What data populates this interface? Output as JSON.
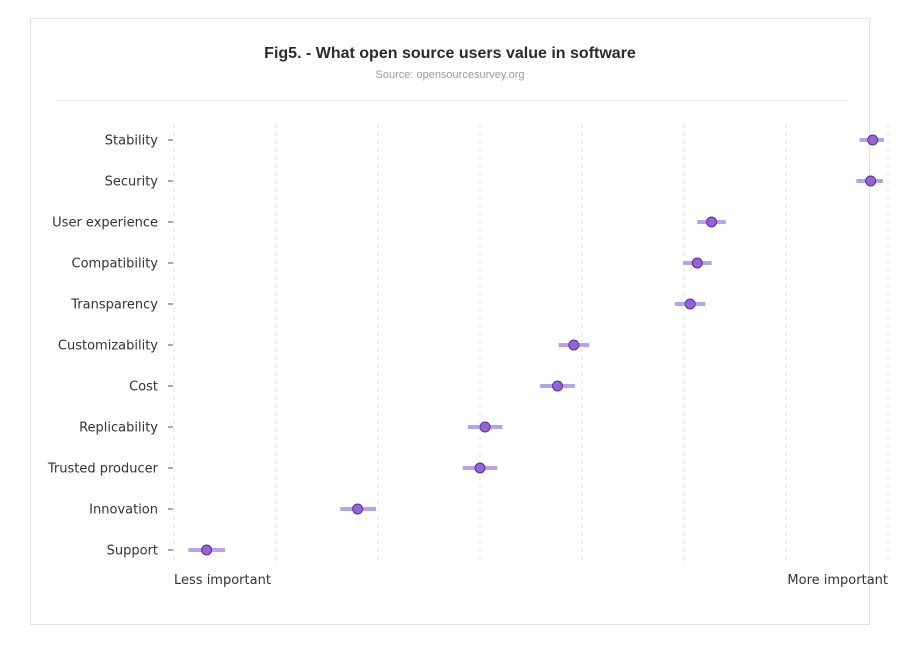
{
  "chart": {
    "title": "Fig5. - What open source users value in software",
    "subtitle": "Source: opensourcesurvey.org"
  },
  "colors": {
    "point_fill": "#9463d6",
    "point_stroke": "#5a2f9a",
    "error_bar": "#b7a3ec",
    "grid": "#e0e0e0",
    "card_border": "#e3e3e3"
  },
  "chart_data": {
    "type": "scatter",
    "title": "Fig5. - What open source users value in software",
    "subtitle": "Source: opensourcesurvey.org",
    "x_tick_labels": [
      "Less important",
      "More important"
    ],
    "xlim": [
      0,
      7
    ],
    "grid": "vertical dashed",
    "categories": [
      "Stability",
      "Security",
      "User experience",
      "Compatibility",
      "Transparency",
      "Customizability",
      "Cost",
      "Replicability",
      "Trusted producer",
      "Innovation",
      "Support"
    ],
    "points": [
      {
        "label": "Stability",
        "value": 6.85,
        "low": 6.72,
        "high": 6.96
      },
      {
        "label": "Security",
        "value": 6.83,
        "low": 6.69,
        "high": 6.95
      },
      {
        "label": "User experience",
        "value": 5.27,
        "low": 5.13,
        "high": 5.41
      },
      {
        "label": "Compatibility",
        "value": 5.13,
        "low": 4.99,
        "high": 5.27
      },
      {
        "label": "Transparency",
        "value": 5.06,
        "low": 4.91,
        "high": 5.21
      },
      {
        "label": "Customizability",
        "value": 3.92,
        "low": 3.77,
        "high": 4.07
      },
      {
        "label": "Cost",
        "value": 3.76,
        "low": 3.59,
        "high": 3.93
      },
      {
        "label": "Replicability",
        "value": 3.05,
        "low": 2.88,
        "high": 3.22
      },
      {
        "label": "Trusted producer",
        "value": 3.0,
        "low": 2.83,
        "high": 3.17
      },
      {
        "label": "Innovation",
        "value": 1.8,
        "low": 1.63,
        "high": 1.98
      },
      {
        "label": "Support",
        "value": 0.32,
        "low": 0.14,
        "high": 0.5
      }
    ]
  }
}
